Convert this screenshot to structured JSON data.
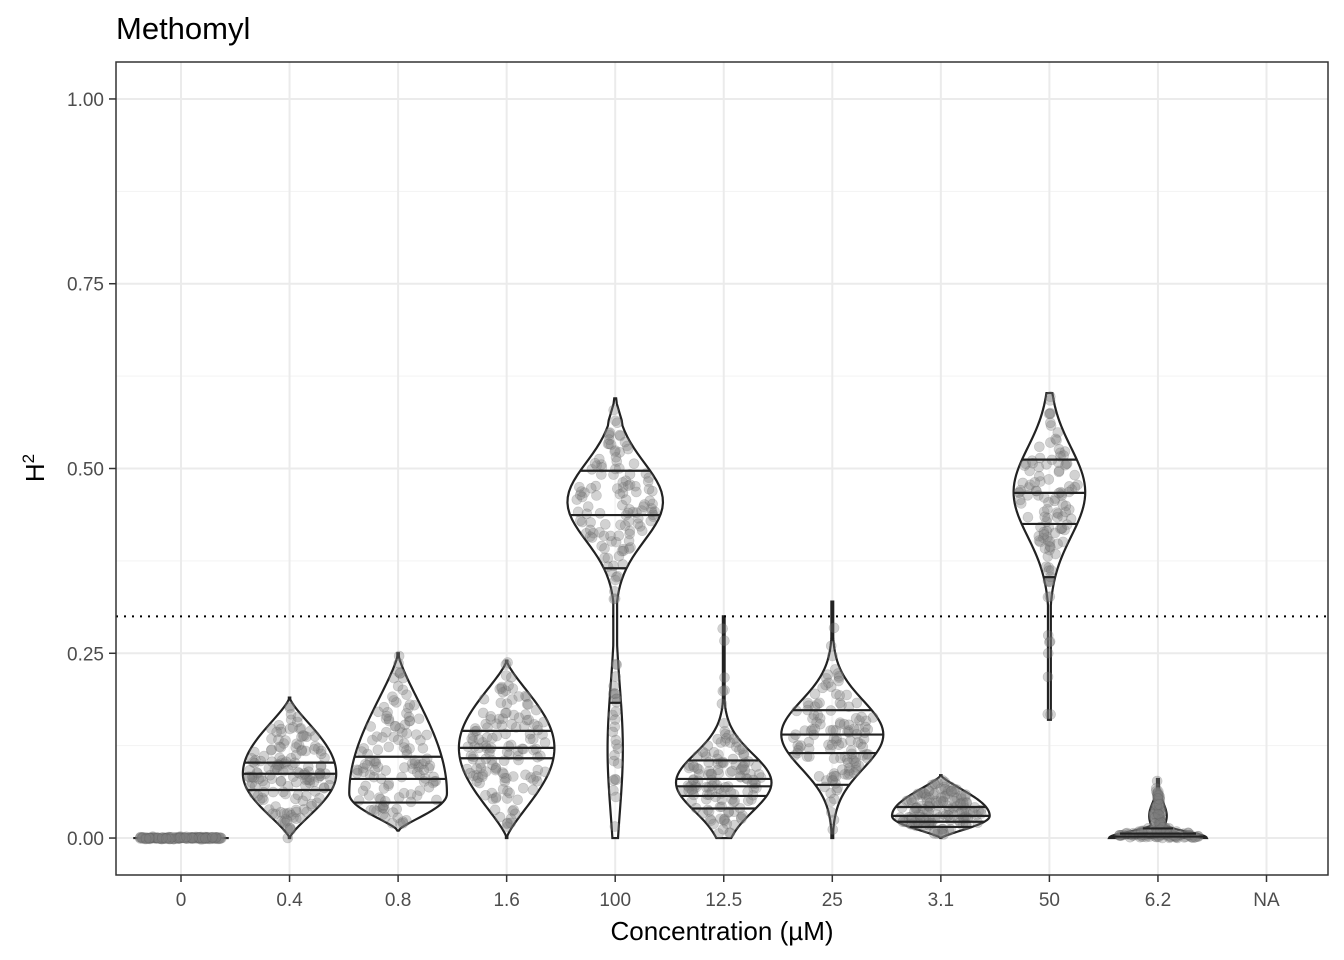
{
  "chart_data": {
    "type": "violin",
    "title": "Methomyl",
    "xlabel": "Concentration (µM)",
    "ylabel_base": "H",
    "ylabel_superscript": "2",
    "ylim": [
      -0.05,
      1.05
    ],
    "yticks": [
      0,
      0.25,
      0.5,
      0.75,
      1.0
    ],
    "ytick_labels": [
      "0.00",
      "0.25",
      "0.50",
      "0.75",
      "1.00"
    ],
    "grid": true,
    "reference_line": {
      "y": 0.3,
      "style": "dotted"
    },
    "categories": [
      "0",
      "0.4",
      "0.8",
      "1.6",
      "100",
      "12.5",
      "25",
      "3.1",
      "50",
      "6.2",
      "NA"
    ],
    "series": [
      {
        "category": "0",
        "min": 0.0,
        "max": 0.0,
        "q25": 0.0,
        "median": 0.0,
        "q75": 0.0,
        "max_halfwidth": 0.44,
        "mode": 0.0,
        "points": 150
      },
      {
        "category": "0.4",
        "min": 0.0,
        "max": 0.19,
        "q25": 0.065,
        "median": 0.087,
        "q75": 0.102,
        "max_halfwidth": 0.43,
        "mode": 0.087,
        "points": 160
      },
      {
        "category": "0.8",
        "min": 0.01,
        "max": 0.25,
        "q25": 0.048,
        "median": 0.08,
        "q75": 0.11,
        "max_halfwidth": 0.45,
        "mode": 0.06,
        "points": 130
      },
      {
        "category": "1.6",
        "min": 0.0,
        "max": 0.24,
        "q25": 0.108,
        "median": 0.122,
        "q75": 0.145,
        "max_halfwidth": 0.44,
        "mode": 0.122,
        "points": 140
      },
      {
        "category": "100",
        "min": 0.0,
        "max": 0.595,
        "q25": 0.183,
        "median": 0.365,
        "q75": 0.437,
        "q90": 0.497,
        "max_halfwidth": 0.44,
        "mode": 0.455,
        "points": 150
      },
      {
        "category": "12.5",
        "min": 0.0,
        "max": 0.3,
        "q25": 0.04,
        "median": 0.057,
        "q75": 0.07,
        "q90": 0.08,
        "q95": 0.105,
        "max_halfwidth": 0.44,
        "mode": 0.075,
        "points": 140
      },
      {
        "category": "25",
        "min": 0.0,
        "max": 0.32,
        "q25": 0.072,
        "median": 0.115,
        "q75": 0.14,
        "q90": 0.173,
        "max_halfwidth": 0.47,
        "mode": 0.14,
        "points": 130
      },
      {
        "category": "3.1",
        "min": 0.0,
        "max": 0.085,
        "q25": 0.015,
        "median": 0.022,
        "q75": 0.03,
        "q90": 0.042,
        "max_halfwidth": 0.45,
        "mode": 0.03,
        "points": 150
      },
      {
        "category": "50",
        "min": 0.16,
        "max": 0.602,
        "q25": 0.353,
        "median": 0.425,
        "q75": 0.467,
        "q90": 0.512,
        "max_halfwidth": 0.33,
        "mode": 0.468,
        "points": 120
      },
      {
        "category": "6.2",
        "min": 0.0,
        "max": 0.08,
        "q25": 0.002,
        "median": 0.006,
        "q75": 0.013,
        "max_halfwidth": 0.45,
        "mode": 0.0,
        "points": 150
      },
      {
        "category": "NA",
        "min": null,
        "max": null,
        "points": 0
      }
    ]
  }
}
